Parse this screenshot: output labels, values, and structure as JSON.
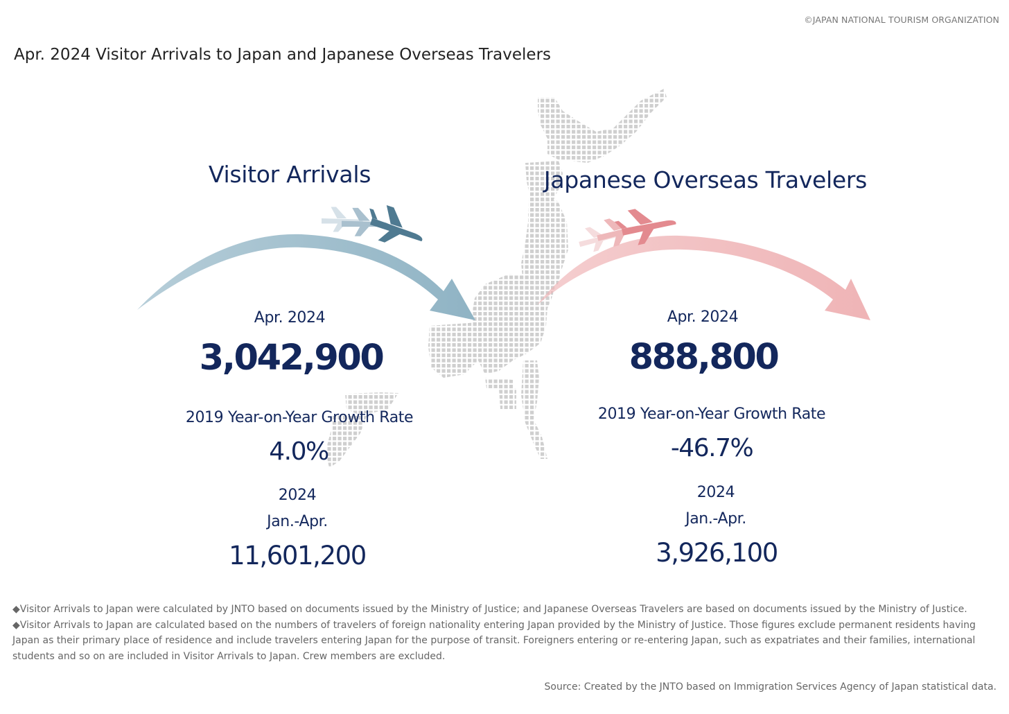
{
  "header": {
    "copyright": "©JAPAN NATIONAL TOURISM ORGANIZATION",
    "title": "Apr. 2024 Visitor Arrivals to Japan and Japanese Overseas Travelers"
  },
  "visitor": {
    "title": "Visitor Arrivals",
    "month_label": "Apr. 2024",
    "month_value": "3,042,900",
    "growth_label": "2019 Year-on-Year Growth Rate",
    "growth_value": "4.0%",
    "ytd_year": "2024",
    "ytd_period": "Jan.-Apr.",
    "ytd_value": "11,601,200",
    "color": "#8fb3c4"
  },
  "overseas": {
    "title": "Japanese Overseas Travelers",
    "month_label": "Apr. 2024",
    "month_value": "888,800",
    "growth_label": "2019 Year-on-Year Growth Rate",
    "growth_value": "-46.7%",
    "ytd_year": "2024",
    "ytd_period": "Jan.-Apr.",
    "ytd_value": "3,926,100",
    "color": "#efb4b6"
  },
  "notes": [
    "◆Visitor Arrivals to Japan were calculated by JNTO based on documents issued by the Ministry of Justice; and Japanese Overseas Travelers are based on documents issued by the Ministry of Justice.",
    "◆Visitor Arrivals to Japan are calculated based on the numbers of travelers of foreign nationality entering Japan provided by the Ministry of Justice. Those figures exclude permanent residents having Japan as their primary place of residence and include travelers entering Japan for the purpose of transit. Foreigners entering or re-entering Japan, such as expatriates and their families, international students and so on are included in Visitor Arrivals to Japan. Crew members are excluded."
  ],
  "source": "Source: Created by the JNTO based on Immigration Services Agency of Japan statistical data."
}
